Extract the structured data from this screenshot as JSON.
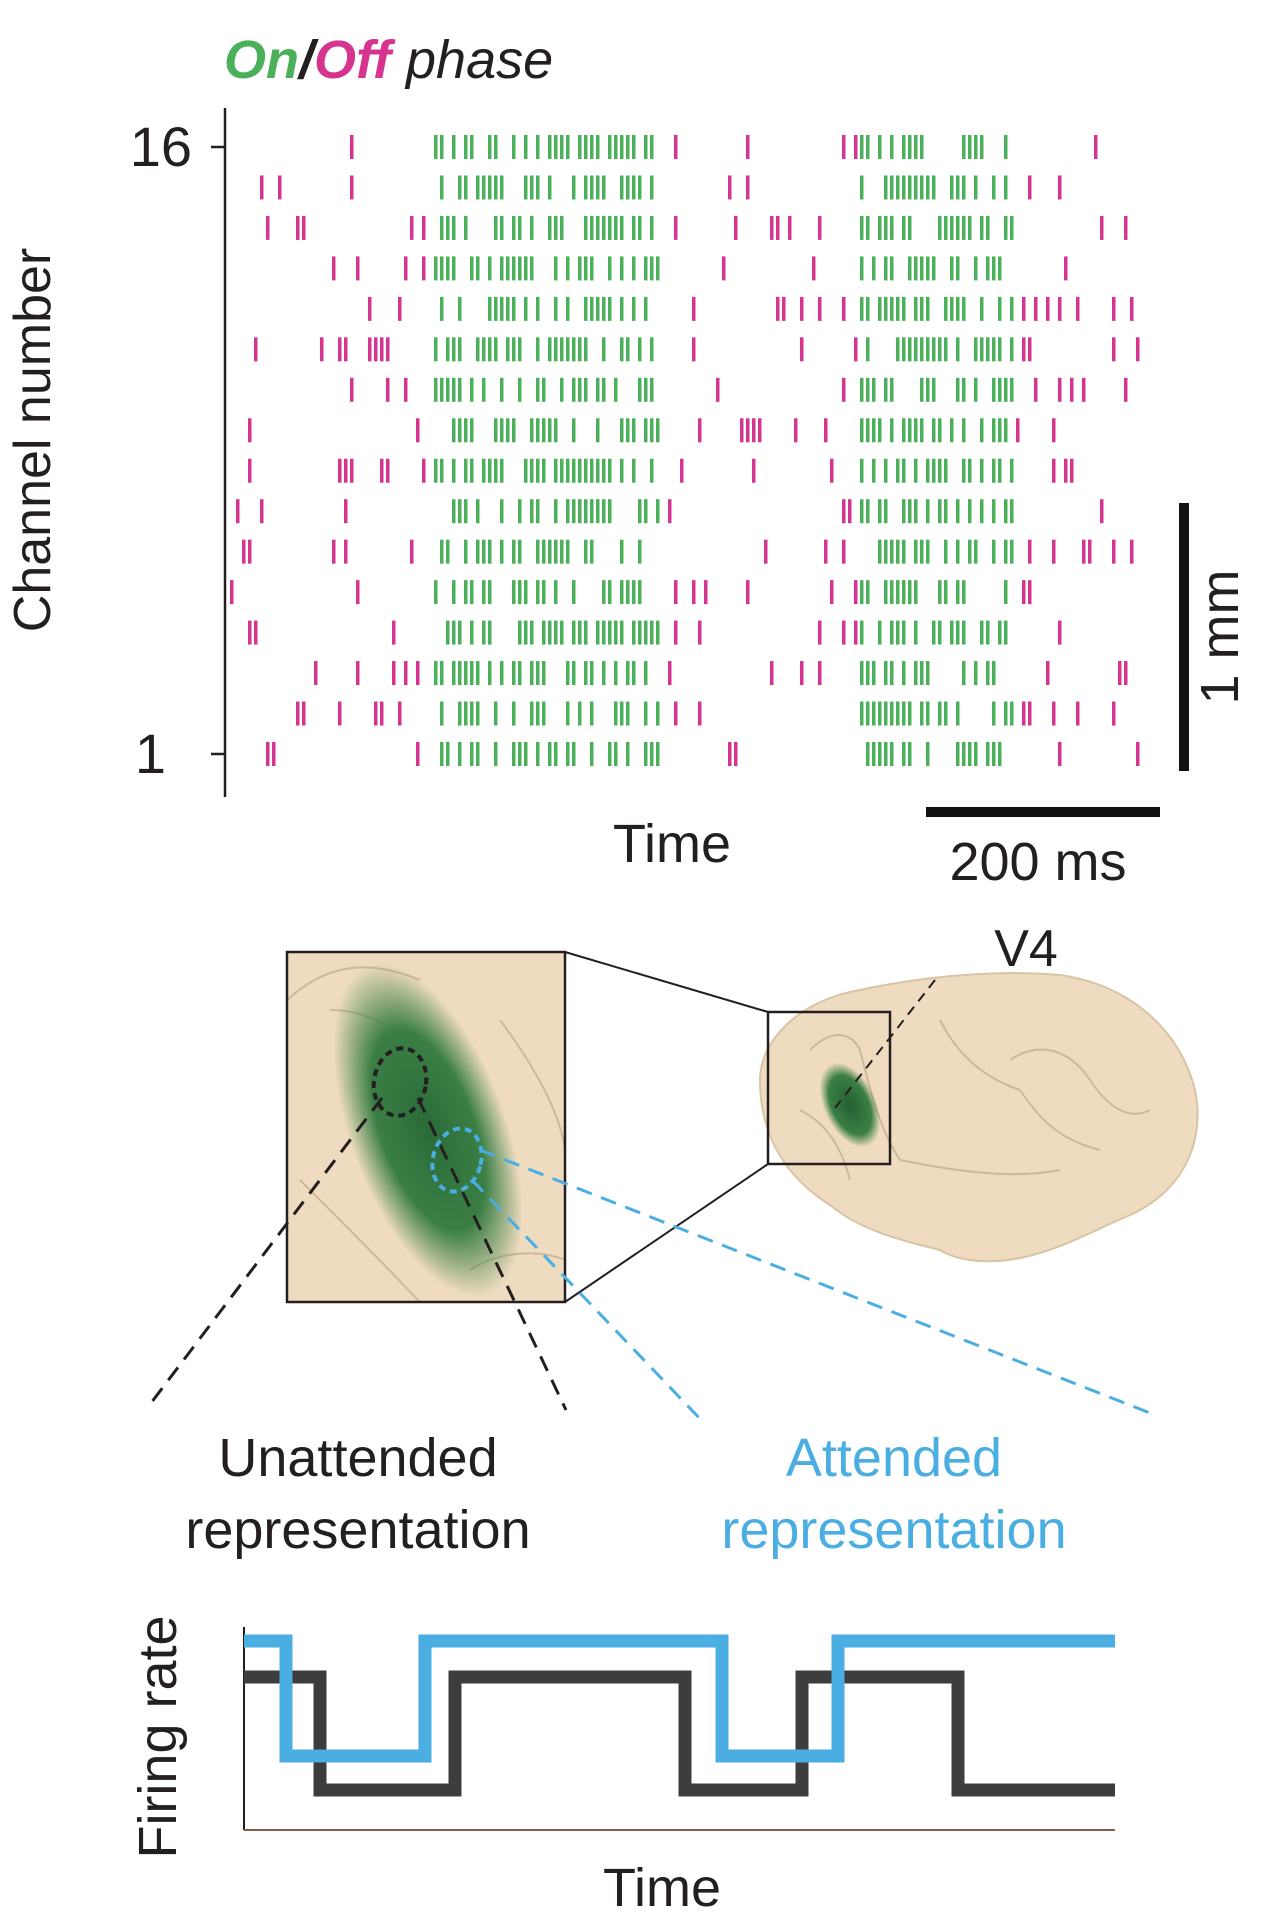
{
  "raster": {
    "title": {
      "on_word": "On",
      "separator": "/",
      "off_word": "Off",
      "rest": " phase"
    },
    "y_axis_label": "Channel number",
    "y_tick_top": "16",
    "y_tick_bottom": "1",
    "x_axis_label": "Time",
    "scale_time_label": "200 ms",
    "scale_depth_label": "1 mm",
    "channels": 16
  },
  "diagram": {
    "area_label": "V4",
    "unattended_label_line1": "Unattended",
    "unattended_label_line2": "representation",
    "attended_label_line1": "Attended",
    "attended_label_line2": "representation"
  },
  "firing_plot": {
    "y_axis_label": "Firing rate",
    "x_axis_label": "Time"
  },
  "colors": {
    "on": "#4bb05a",
    "off": "#d6358f",
    "attended": "#4aaee3",
    "unattended": "#3d3d3d",
    "brain": "#efdcc0",
    "brain_stroke": "#cdb89a",
    "v4_region": "#2d6e3c",
    "text": "#231f20"
  }
}
